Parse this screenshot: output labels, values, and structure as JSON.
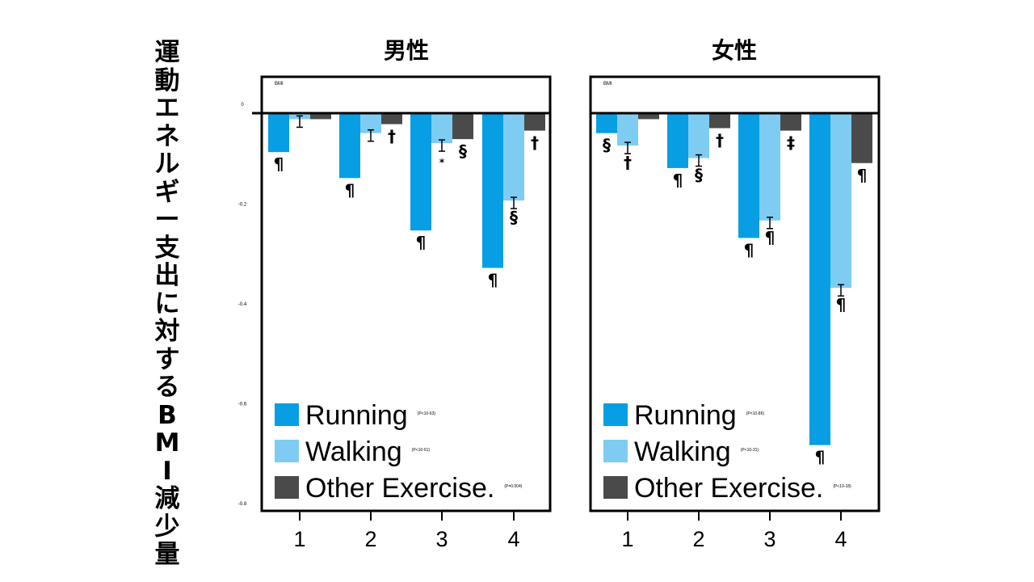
{
  "y_axis_title": "運動エネルギー支出に対するBMI減少量",
  "colors": {
    "running": "#079ee3",
    "walking": "#7fccf2",
    "other": "#4a4a4a"
  },
  "chart_data": [
    {
      "type": "bar",
      "title": "男性",
      "corner_label": "BMI",
      "categories": [
        "1",
        "2",
        "3",
        "4"
      ],
      "yticks": [
        "0",
        "-0.2",
        "-0.4",
        "-0.6",
        "-0.8"
      ],
      "ylim": [
        -0.8,
        0.075
      ],
      "series": [
        {
          "name": "Running",
          "values": [
            -0.078,
            -0.13,
            -0.235,
            -0.31
          ],
          "labels": [
            "¶",
            "¶",
            "¶",
            "¶"
          ]
        },
        {
          "name": "Walking",
          "values": [
            -0.012,
            -0.04,
            -0.06,
            -0.175
          ],
          "labels": [
            "",
            "",
            "*",
            "§"
          ]
        },
        {
          "name": "Other Exercise.",
          "values": [
            -0.012,
            -0.022,
            -0.052,
            -0.035
          ],
          "labels": [
            "",
            "†",
            "§",
            "†"
          ]
        }
      ],
      "legend": [
        {
          "name": "Running",
          "note": "(P<10-63)"
        },
        {
          "name": "Walking",
          "note": "(P<10-61)"
        },
        {
          "name": "Other Exercise.",
          "note": "(P=0.004)"
        }
      ],
      "legend_position": "bottom-left"
    },
    {
      "type": "bar",
      "title": "女性",
      "corner_label": "BMI",
      "categories": [
        "1",
        "2",
        "3",
        "4"
      ],
      "yticks": [],
      "ylim": [
        -0.8,
        0.075
      ],
      "series": [
        {
          "name": "Running",
          "values": [
            -0.04,
            -0.11,
            -0.25,
            -0.665
          ],
          "labels": [
            "§",
            "¶",
            "¶",
            "¶"
          ]
        },
        {
          "name": "Walking",
          "values": [
            -0.065,
            -0.09,
            -0.215,
            -0.35
          ],
          "labels": [
            "†",
            "§",
            "¶",
            "¶"
          ]
        },
        {
          "name": "Other Exercise.",
          "values": [
            -0.012,
            -0.03,
            -0.035,
            -0.1
          ],
          "labels": [
            "",
            "†",
            "‡",
            "¶"
          ]
        }
      ],
      "legend": [
        {
          "name": "Running",
          "note": "(P<10-86)"
        },
        {
          "name": "Walking",
          "note": "(P<10-31)"
        },
        {
          "name": "Other Exercise.",
          "note": "(P<10-18)"
        }
      ],
      "legend_position": "bottom-left"
    }
  ]
}
